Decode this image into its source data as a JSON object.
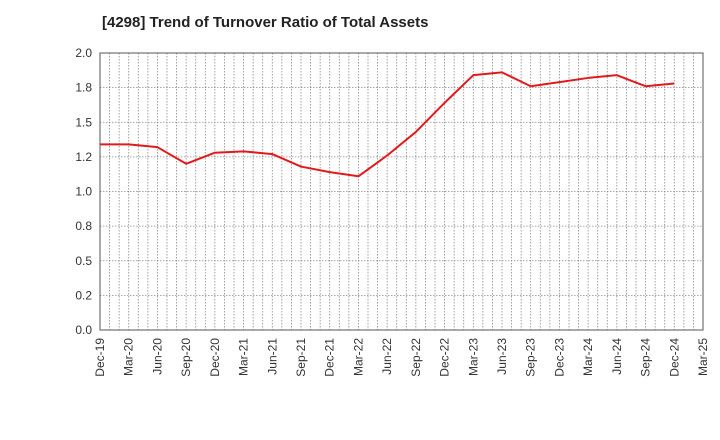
{
  "chart_data": {
    "type": "line",
    "title": "[4298]  Trend of Turnover Ratio of Total Assets",
    "xlabel": "",
    "ylabel": "",
    "ylim": [
      0.0,
      2.0
    ],
    "y_ticks": [
      "0.0",
      "0.2",
      "0.5",
      "0.8",
      "1.0",
      "1.2",
      "1.5",
      "1.8",
      "2.0"
    ],
    "x_ticks": [
      "Dec-19",
      "Mar-20",
      "Jun-20",
      "Sep-20",
      "Dec-20",
      "Mar-21",
      "Jun-21",
      "Sep-21",
      "Dec-21",
      "Mar-22",
      "Jun-22",
      "Sep-22",
      "Dec-22",
      "Mar-23",
      "Jun-23",
      "Sep-23",
      "Dec-23",
      "Mar-24",
      "Jun-24",
      "Sep-24",
      "Dec-24",
      "Mar-25"
    ],
    "grid": true,
    "legend": "none",
    "series": [
      {
        "color": "#e31a1c",
        "x": [
          "Dec-19",
          "Mar-20",
          "Jun-20",
          "Sep-20",
          "Dec-20",
          "Mar-21",
          "Jun-21",
          "Sep-21",
          "Dec-21",
          "Mar-22",
          "Jun-22",
          "Sep-22",
          "Dec-22",
          "Mar-23",
          "Jun-23",
          "Sep-23",
          "Dec-23",
          "Mar-24",
          "Jun-24",
          "Sep-24",
          "Dec-24"
        ],
        "values": [
          1.34,
          1.34,
          1.32,
          1.2,
          1.28,
          1.29,
          1.27,
          1.18,
          1.14,
          1.11,
          1.26,
          1.43,
          1.64,
          1.84,
          1.86,
          1.76,
          1.79,
          1.82,
          1.84,
          1.76,
          1.78
        ]
      }
    ]
  },
  "colors": {
    "line": "#e31a1c",
    "grid": "#888888",
    "axis": "#555555"
  }
}
